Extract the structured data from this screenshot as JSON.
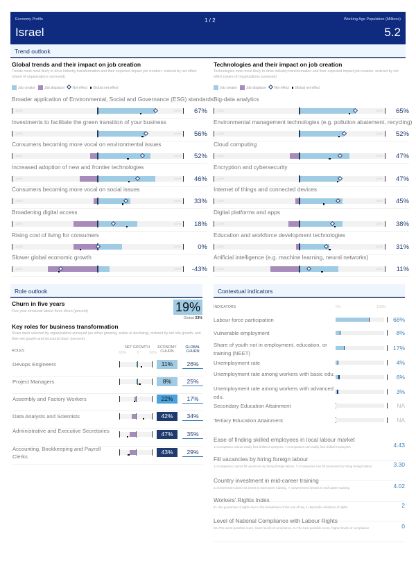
{
  "header": {
    "profile_label": "Economy Profile",
    "country": "Israel",
    "page_indicator": "1 / 2",
    "wap_label": "Working Age Population (Millions)",
    "wap_value": "5.2"
  },
  "trend_outlook": {
    "section_title": "Trend outlook",
    "scale_min_label": "-100%",
    "scale_max_label": "100%",
    "legend": {
      "job_creator": "Job creator",
      "job_displacer": "Job displacer",
      "net_effect": "Net effect",
      "global_net_effect": "Global net effect"
    },
    "global_trends": {
      "title": "Global trends and their impact on job creation",
      "description": "Trends most most likely to drive industry transformation and their expected impact job creation, ordered by net effect (share of organizations surveyed)",
      "items": [
        {
          "name": "Broader application of Environmental, Social and Governance (ESG) standards",
          "creator": 67,
          "displacer": 0,
          "net": 67,
          "global": 50,
          "value": "67%"
        },
        {
          "name": "Investments to facilitate the green transition of your business",
          "creator": 56,
          "displacer": 0,
          "net": 56,
          "global": 52,
          "value": "56%"
        },
        {
          "name": "Consumers becoming more vocal on environmental issues",
          "creator": 61,
          "displacer": 9,
          "net": 52,
          "global": 35,
          "value": "52%"
        },
        {
          "name": "Increased adoption of new and frontier technologies",
          "creator": 67,
          "displacer": 21,
          "net": 46,
          "global": 36,
          "value": "46%"
        },
        {
          "name": "Consumers becoming more vocal on social issues",
          "creator": 38,
          "displacer": 5,
          "net": 33,
          "global": 29,
          "value": "33%"
        },
        {
          "name": "Broadening digital access",
          "creator": 46,
          "displacer": 28,
          "net": 18,
          "global": 34,
          "value": "18%"
        },
        {
          "name": "Rising cost of living for consumers",
          "creator": 28,
          "displacer": 28,
          "net": 0,
          "global": -20,
          "value": "0%"
        },
        {
          "name": "Slower global economic growth",
          "creator": 14,
          "displacer": 58,
          "net": -43,
          "global": -45,
          "value": "-43%"
        }
      ]
    },
    "technologies": {
      "title": "Technologies and their impact on job creation",
      "description": "Technologies most most likely to drive industry transformation and their expected impact job creation, ordered by net effect (share of organizations surveyed)",
      "items": [
        {
          "name": "Big-data analytics",
          "creator": 65,
          "displacer": 0,
          "net": 65,
          "global": 58,
          "value": "65%"
        },
        {
          "name": "Environmental management technologies (e.g. pollution abatement, recycling)",
          "creator": 52,
          "displacer": 0,
          "net": 52,
          "global": 46,
          "value": "52%"
        },
        {
          "name": "Cloud computing",
          "creator": 58,
          "displacer": 11,
          "net": 47,
          "global": 35,
          "value": "47%"
        },
        {
          "name": "Encryption and cybersecurity",
          "creator": 47,
          "displacer": 0,
          "net": 47,
          "global": 44,
          "value": "47%"
        },
        {
          "name": "Internet of things and connected devices",
          "creator": 50,
          "displacer": 5,
          "net": 45,
          "global": 28,
          "value": "45%"
        },
        {
          "name": "Digital platforms and apps",
          "creator": 50,
          "displacer": 13,
          "net": 38,
          "global": 41,
          "value": "38%"
        },
        {
          "name": "Education and workforce development technologies",
          "creator": 35,
          "displacer": 4,
          "net": 31,
          "global": 35,
          "value": "31%"
        },
        {
          "name": "Artificial intelligence (e.g. machine learning, neural networks)",
          "creator": 45,
          "displacer": 34,
          "net": 11,
          "global": 26,
          "value": "11%"
        }
      ]
    }
  },
  "role_outlook": {
    "section_title": "Role outlook",
    "churn_title": "Churn in five years",
    "churn_description": "Five-year structural labour force churn (percent)",
    "churn_value": "19%",
    "churn_global_label": "Global",
    "churn_global_value": "23%",
    "key_roles_title": "Key roles for business transformation",
    "key_roles_description": "Roles most selected by organizations surveyed (as either growing, stable or declining), ordered by net role growth, and their net growth and structural churn (percent)",
    "columns": {
      "roles": "ROLES",
      "net_growth": "NET GROWTH",
      "scale_min": "-50%",
      "scale_mid": "0",
      "scale_max": "50%",
      "economy_churn": "ECONOMY CHURN",
      "global_churn": "GLOBAL CHURN"
    },
    "roles": [
      {
        "name": "Devops Engineers",
        "net_growth": 6,
        "global_growth": 16,
        "economy_churn": "11%",
        "global_churn": "26%",
        "shade": "#9fcbe4",
        "text": "#111"
      },
      {
        "name": "Project Managers",
        "net_growth": 5,
        "global_growth": 11,
        "economy_churn": "8%",
        "global_churn": "25%",
        "shade": "#9fcbe4",
        "text": "#111"
      },
      {
        "name": "Assembly and Factory Workers",
        "net_growth": -5,
        "global_growth": -5,
        "economy_churn": "22%",
        "global_churn": "17%",
        "shade": "#4aa3db",
        "text": "#111"
      },
      {
        "name": "Data Analysts and Scientists",
        "net_growth": -12,
        "global_growth": 22,
        "economy_churn": "42%",
        "global_churn": "34%",
        "shade": "#1f3a6e",
        "text": "#fff"
      },
      {
        "name": "Administrative and Executive Secretaries",
        "net_growth": -18,
        "global_growth": -26,
        "economy_churn": "47%",
        "global_churn": "35%",
        "shade": "#1f3a6e",
        "text": "#fff"
      },
      {
        "name": "Accounting, Bookkeeping and Payroll Clerks",
        "net_growth": -18,
        "global_growth": -22,
        "economy_churn": "43%",
        "global_churn": "29%",
        "shade": "#1f3a6e",
        "text": "#fff"
      }
    ]
  },
  "contextual_indicators": {
    "section_title": "Contextual indicators",
    "column_label": "INDICATORS",
    "scale_min": "0%",
    "scale_max": "100%",
    "indicators": [
      {
        "name": "Labour force participation",
        "value": 68,
        "display": "68%"
      },
      {
        "name": "Vulnerable employment",
        "value": 8,
        "display": "8%"
      },
      {
        "name": "Share of youth not in employment, education, or training (NEET)",
        "value": 17,
        "display": "17%"
      },
      {
        "name": "Unemployment rate",
        "value": 4,
        "display": "4%"
      },
      {
        "name": "Unemployment rate among workers with basic edu.",
        "value": 6,
        "display": "6%"
      },
      {
        "name": "Unemployment rate among workers with advanced edu.",
        "value": 3,
        "display": "3%"
      },
      {
        "name": "Secondary Education Attainment",
        "value": null,
        "display": "NA"
      },
      {
        "name": "Tertiary Education Attainment",
        "value": null,
        "display": "NA"
      }
    ],
    "scales": [
      {
        "name": "Ease of finding skilled employees in local labour market",
        "description": "1=Companies cannot easily find skilled employees, 7=Companies can easily find skilled employees",
        "value": "4.43"
      },
      {
        "name": "Fill vacancies by hiring foreign labour",
        "description": "1=Companies cannot fill vacancies by hiring foreign labour, 7=Companies can fill vacancies by hiring foreign labour",
        "value": "3.30"
      },
      {
        "name": "Country investment in mid-career training",
        "description": "1=Government does not invest in mid-career training, 7=Government invests in mid-career training",
        "value": "4.02"
      },
      {
        "name": "Workers' Rights Index",
        "description": "5+=No guarantee of rights due to the breakdown of the rule of law, 1=Sporadic violations of rights",
        "value": "2"
      },
      {
        "name": "Level of National Compliance with Labour Rights",
        "description": "10=The worst possible score, lower levels of compliance, 0=The best possible score, higher levels of compliance",
        "value": "0"
      }
    ]
  },
  "colors": {
    "header_bg": "#0f2b80",
    "job_creator": "#9fcbe4",
    "job_displacer": "#a68bbc",
    "net_effect": "#1f3a6e",
    "accent_value": "#3a7fb5"
  }
}
